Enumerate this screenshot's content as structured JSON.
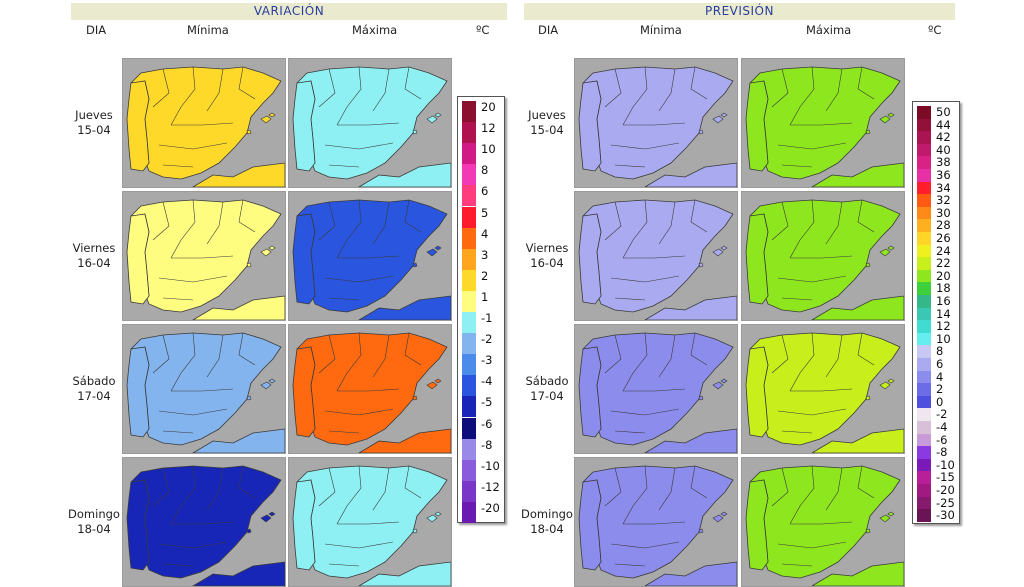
{
  "left": {
    "title": "VARIACIÓN",
    "col_dia": "DIA",
    "col_min": "Mínima",
    "col_max": "Máxima",
    "unit": "ºC"
  },
  "right": {
    "title": "PREVISIÓN",
    "col_dia": "DIA",
    "col_min": "Mínima",
    "col_max": "Máxima",
    "unit": "ºC"
  },
  "rows": [
    {
      "day": "Jueves",
      "date": "15-04"
    },
    {
      "day": "Viernes",
      "date": "16-04"
    },
    {
      "day": "Sábado",
      "date": "17-04"
    },
    {
      "day": "Domingo",
      "date": "18-04"
    }
  ],
  "variation_legend": [
    {
      "label": "20",
      "color": "#8b0f2e"
    },
    {
      "label": "12",
      "color": "#b0124f"
    },
    {
      "label": "10",
      "color": "#d21a86"
    },
    {
      "label": "8",
      "color": "#f33ab6"
    },
    {
      "label": "6",
      "color": "#ff3c7e"
    },
    {
      "label": "5",
      "color": "#ff1a2e"
    },
    {
      "label": "4",
      "color": "#ff6a10"
    },
    {
      "label": "3",
      "color": "#ffa51e"
    },
    {
      "label": "2",
      "color": "#ffd92a"
    },
    {
      "label": "1",
      "color": "#fffd80"
    },
    {
      "label": "-1",
      "color": "#8ef0f2"
    },
    {
      "label": "-2",
      "color": "#83b4ee"
    },
    {
      "label": "-3",
      "color": "#4b8bea"
    },
    {
      "label": "-4",
      "color": "#2a55de"
    },
    {
      "label": "-5",
      "color": "#1826b8"
    },
    {
      "label": "-6",
      "color": "#0c0c7a"
    },
    {
      "label": "-8",
      "color": "#9a8ae8"
    },
    {
      "label": "-10",
      "color": "#8a5cdc"
    },
    {
      "label": "-12",
      "color": "#7a36c6"
    },
    {
      "label": "-20",
      "color": "#6a1ab0"
    }
  ],
  "forecast_legend": [
    {
      "label": "50",
      "color": "#7a0a26"
    },
    {
      "label": "44",
      "color": "#92113a"
    },
    {
      "label": "42",
      "color": "#aa1452"
    },
    {
      "label": "40",
      "color": "#c01a6c"
    },
    {
      "label": "38",
      "color": "#d82286"
    },
    {
      "label": "36",
      "color": "#e830a6"
    },
    {
      "label": "34",
      "color": "#ff1e2a"
    },
    {
      "label": "32",
      "color": "#ff5a12"
    },
    {
      "label": "30",
      "color": "#ff8a18"
    },
    {
      "label": "28",
      "color": "#ffb020"
    },
    {
      "label": "26",
      "color": "#ffd628"
    },
    {
      "label": "24",
      "color": "#f0f020"
    },
    {
      "label": "22",
      "color": "#c8ee1c"
    },
    {
      "label": "20",
      "color": "#8ee61e"
    },
    {
      "label": "18",
      "color": "#3ed03a"
    },
    {
      "label": "16",
      "color": "#34b88a"
    },
    {
      "label": "14",
      "color": "#3ac8b4"
    },
    {
      "label": "12",
      "color": "#40dcd2"
    },
    {
      "label": "10",
      "color": "#66eeee"
    },
    {
      "label": "8",
      "color": "#c8c8f4"
    },
    {
      "label": "6",
      "color": "#aaaaf0"
    },
    {
      "label": "4",
      "color": "#8c8cec"
    },
    {
      "label": "2",
      "color": "#6c6ce6"
    },
    {
      "label": "0",
      "color": "#5050de"
    },
    {
      "label": "-2",
      "color": "#f0e6f0"
    },
    {
      "label": "-4",
      "color": "#d8c0d8"
    },
    {
      "label": "-6",
      "color": "#c89ad8"
    },
    {
      "label": "-8",
      "color": "#8a3ae0"
    },
    {
      "label": "-10",
      "color": "#7a1ab8"
    },
    {
      "label": "-15",
      "color": "#b8209a"
    },
    {
      "label": "-20",
      "color": "#a01a82"
    },
    {
      "label": "-25",
      "color": "#861a6c"
    },
    {
      "label": "-30",
      "color": "#6a1456"
    }
  ],
  "map_fills": {
    "var_min": [
      "#ffd92a",
      "#fffd80",
      "#83b4ee",
      "#1826b8"
    ],
    "var_max": [
      "#8ef0f2",
      "#2a55de",
      "#ff6a10",
      "#8ef0f2"
    ],
    "fc_min": [
      "#aaaaf0",
      "#aaaaf0",
      "#8c8cec",
      "#8c8cec"
    ],
    "fc_max": [
      "#8ee61e",
      "#8ee61e",
      "#c8ee1c",
      "#8ee61e"
    ],
    "sea": "#a9a9a9",
    "border": "#3a3a3a"
  }
}
